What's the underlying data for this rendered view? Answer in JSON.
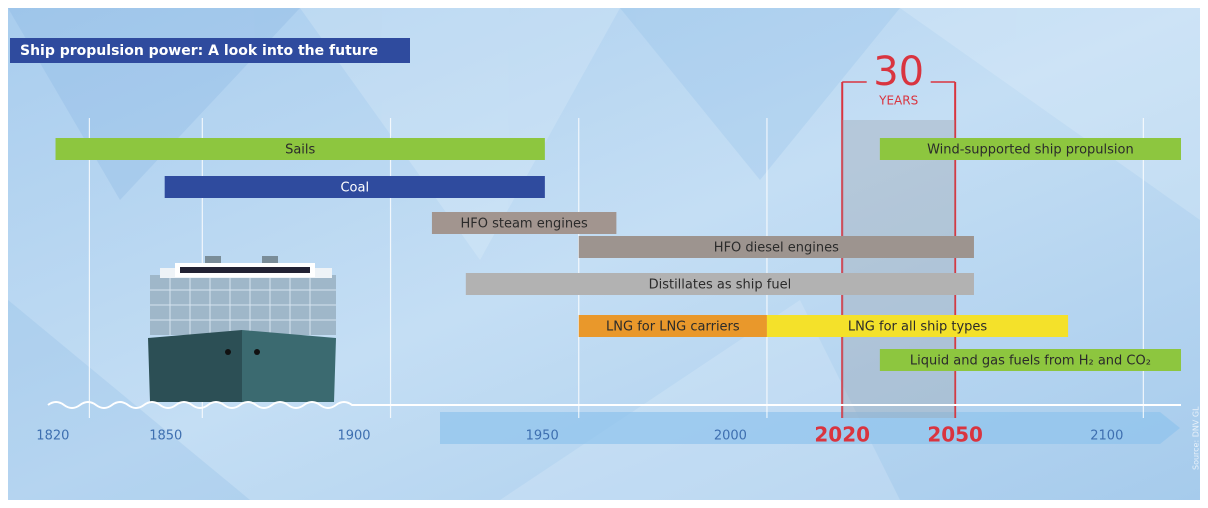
{
  "chart_data": {
    "type": "timeline",
    "title": "Ship propulsion power: A look into the future",
    "source": "Source: DNV GL",
    "xlim": [
      1809,
      2110
    ],
    "xticks": [
      1820,
      1850,
      1900,
      1950,
      2000,
      2020,
      2050,
      2100
    ],
    "highlight": {
      "range": [
        2020,
        2050
      ],
      "color": "#d9343f",
      "number": 30,
      "label": "YEARS"
    },
    "series": [
      {
        "name": "Sails",
        "start": 1811,
        "end": 1941,
        "color": "#8dc63f"
      },
      {
        "name": "Coal",
        "start": 1840,
        "end": 1941,
        "color": "#2f4b9e"
      },
      {
        "name": "HFO steam engines",
        "start": 1911,
        "end": 1960,
        "color": "#a2958f"
      },
      {
        "name": "HFO diesel engines",
        "start": 1950,
        "end": 2055,
        "color": "#9d948f"
      },
      {
        "name": "Distillates as ship fuel",
        "start": 1920,
        "end": 2055,
        "color": "#b2b2b2"
      },
      {
        "name": "LNG for LNG carriers",
        "start": 1950,
        "end": 2000,
        "color": "#e9982b"
      },
      {
        "name": "LNG for all ship types",
        "start": 2000,
        "end": 2080,
        "color": "#f4e12a"
      },
      {
        "name": "Wind-supported ship propulsion",
        "start": 2030,
        "end": 2110,
        "color": "#8dc63f"
      },
      {
        "name": "Liquid and gas fuels from H₂ and CO₂",
        "start": 2030,
        "end": 2110,
        "color": "#8dc63f"
      }
    ]
  }
}
